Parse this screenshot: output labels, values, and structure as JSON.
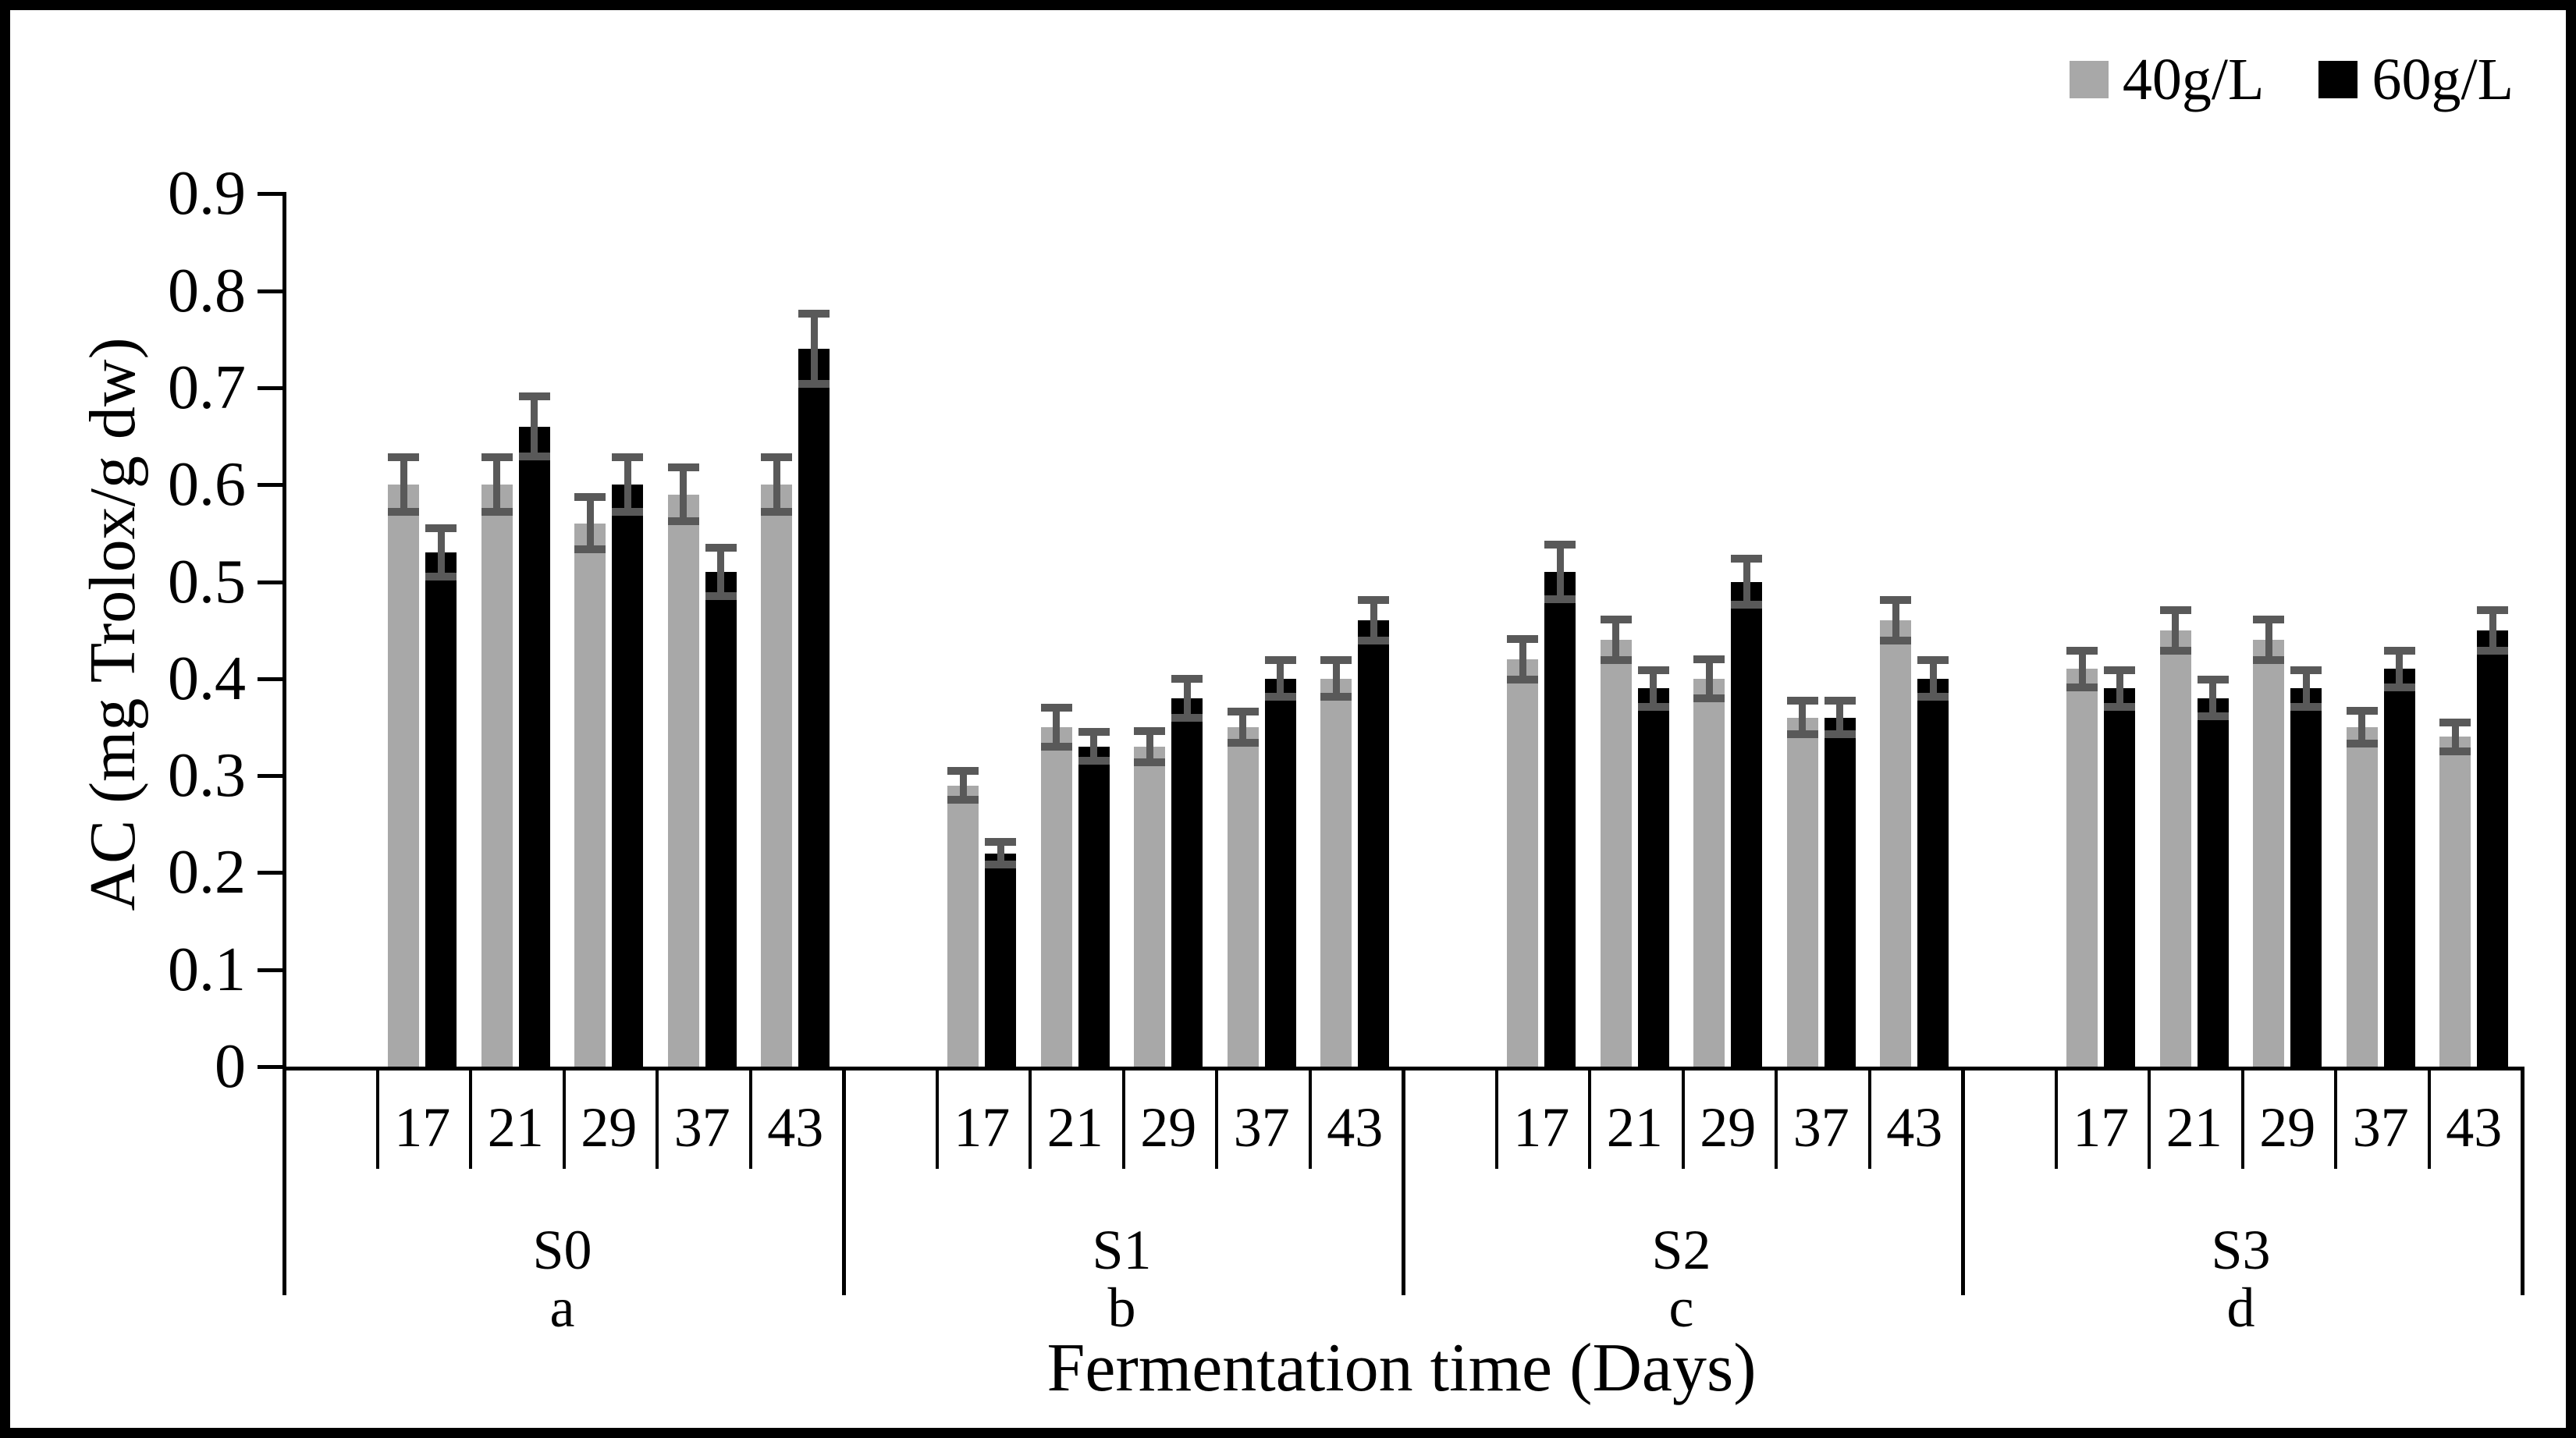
{
  "page": {
    "background": "#ffffff",
    "frame_color": "#000000"
  },
  "chart_data": {
    "type": "bar",
    "title": "",
    "xlabel": "Fermentation time (Days)",
    "ylabel": "AC (mg Trolox/g dw)",
    "ylim": [
      0,
      0.9
    ],
    "ytick_labels": [
      "0",
      "0.1",
      "0.2",
      "0.3",
      "0.4",
      "0.5",
      "0.6",
      "0.7",
      "0.8",
      "0.9"
    ],
    "grid": false,
    "legend_position": "top-right",
    "days": [
      "17",
      "21",
      "29",
      "37",
      "43"
    ],
    "series_names": [
      "40g/L",
      "60g/L"
    ],
    "series_colors": [
      "#a8a8a8",
      "#000000"
    ],
    "error_bar_color": "#595959",
    "groups": [
      {
        "label": "S0",
        "sub_label": "a",
        "series": [
          {
            "name": "40g/L",
            "values": [
              0.6,
              0.6,
              0.56,
              0.59,
              0.6
            ],
            "errors": [
              0.028,
              0.028,
              0.027,
              0.028,
              0.028
            ]
          },
          {
            "name": "60g/L",
            "values": [
              0.53,
              0.66,
              0.6,
              0.51,
              0.74
            ],
            "errors": [
              0.025,
              0.031,
              0.028,
              0.025,
              0.036
            ]
          }
        ]
      },
      {
        "label": "S1",
        "sub_label": "b",
        "series": [
          {
            "name": "40g/L",
            "values": [
              0.29,
              0.35,
              0.33,
              0.35,
              0.4
            ],
            "errors": [
              0.015,
              0.02,
              0.016,
              0.016,
              0.019
            ]
          },
          {
            "name": "60g/L",
            "values": [
              0.22,
              0.33,
              0.38,
              0.4,
              0.46
            ],
            "errors": [
              0.012,
              0.015,
              0.02,
              0.019,
              0.021
            ]
          }
        ]
      },
      {
        "label": "S2",
        "sub_label": "c",
        "series": [
          {
            "name": "40g/L",
            "values": [
              0.42,
              0.44,
              0.4,
              0.36,
              0.46
            ],
            "errors": [
              0.021,
              0.021,
              0.02,
              0.017,
              0.021
            ]
          },
          {
            "name": "60g/L",
            "values": [
              0.51,
              0.39,
              0.5,
              0.36,
              0.4
            ],
            "errors": [
              0.028,
              0.019,
              0.024,
              0.017,
              0.019
            ]
          }
        ]
      },
      {
        "label": "S3",
        "sub_label": "d",
        "series": [
          {
            "name": "40g/L",
            "values": [
              0.41,
              0.45,
              0.44,
              0.35,
              0.34
            ],
            "errors": [
              0.019,
              0.021,
              0.021,
              0.017,
              0.015
            ]
          },
          {
            "name": "60g/L",
            "values": [
              0.39,
              0.38,
              0.39,
              0.41,
              0.45
            ],
            "errors": [
              0.019,
              0.019,
              0.019,
              0.019,
              0.021
            ]
          }
        ]
      }
    ]
  }
}
